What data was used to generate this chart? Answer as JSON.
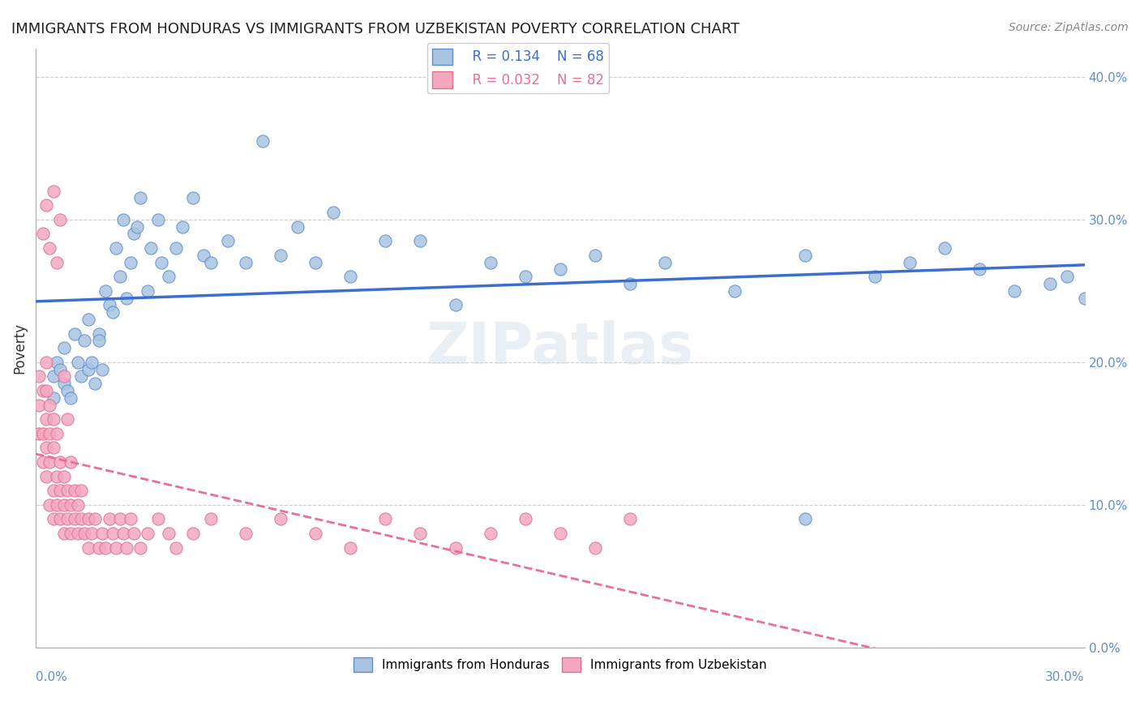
{
  "title": "IMMIGRANTS FROM HONDURAS VS IMMIGRANTS FROM UZBEKISTAN POVERTY CORRELATION CHART",
  "source": "Source: ZipAtlas.com",
  "ylabel": "Poverty",
  "ylabel_right_ticks": [
    "0.0%",
    "10.0%",
    "20.0%",
    "30.0%",
    "40.0%"
  ],
  "ylabel_right_vals": [
    0.0,
    0.1,
    0.2,
    0.3,
    0.4
  ],
  "xmin": 0.0,
  "xmax": 0.3,
  "ymin": 0.0,
  "ymax": 0.42,
  "legend_r1": "R = 0.134",
  "legend_n1": "N = 68",
  "legend_r2": "R = 0.032",
  "legend_n2": "N = 82",
  "label1": "Immigrants from Honduras",
  "label2": "Immigrants from Uzbekistan",
  "dot_color1": "#a8c4e0",
  "dot_color2": "#f4a8bf",
  "line_color1": "#3c6fcd",
  "line_color2": "#e87090",
  "watermark": "ZIPatlas",
  "background_color": "#ffffff",
  "dot_edge_color1": "#5b8fd4",
  "dot_edge_color2": "#e07090",
  "honduras_x": [
    0.005,
    0.005,
    0.006,
    0.007,
    0.008,
    0.008,
    0.009,
    0.01,
    0.011,
    0.012,
    0.013,
    0.014,
    0.015,
    0.015,
    0.016,
    0.017,
    0.018,
    0.018,
    0.019,
    0.02,
    0.021,
    0.022,
    0.023,
    0.024,
    0.025,
    0.026,
    0.027,
    0.028,
    0.029,
    0.03,
    0.032,
    0.033,
    0.035,
    0.036,
    0.038,
    0.04,
    0.042,
    0.045,
    0.048,
    0.05,
    0.055,
    0.06,
    0.065,
    0.07,
    0.075,
    0.08,
    0.085,
    0.09,
    0.1,
    0.11,
    0.12,
    0.13,
    0.14,
    0.15,
    0.16,
    0.17,
    0.18,
    0.2,
    0.22,
    0.24,
    0.25,
    0.26,
    0.27,
    0.28,
    0.29,
    0.295,
    0.3,
    0.22
  ],
  "honduras_y": [
    0.175,
    0.19,
    0.2,
    0.195,
    0.185,
    0.21,
    0.18,
    0.175,
    0.22,
    0.2,
    0.19,
    0.215,
    0.23,
    0.195,
    0.2,
    0.185,
    0.22,
    0.215,
    0.195,
    0.25,
    0.24,
    0.235,
    0.28,
    0.26,
    0.3,
    0.245,
    0.27,
    0.29,
    0.295,
    0.315,
    0.25,
    0.28,
    0.3,
    0.27,
    0.26,
    0.28,
    0.295,
    0.315,
    0.275,
    0.27,
    0.285,
    0.27,
    0.355,
    0.275,
    0.295,
    0.27,
    0.305,
    0.26,
    0.285,
    0.285,
    0.24,
    0.27,
    0.26,
    0.265,
    0.275,
    0.255,
    0.27,
    0.25,
    0.275,
    0.26,
    0.27,
    0.28,
    0.265,
    0.25,
    0.255,
    0.26,
    0.245,
    0.09
  ],
  "uzbekistan_x": [
    0.001,
    0.001,
    0.001,
    0.002,
    0.002,
    0.002,
    0.003,
    0.003,
    0.003,
    0.003,
    0.003,
    0.004,
    0.004,
    0.004,
    0.004,
    0.005,
    0.005,
    0.005,
    0.005,
    0.006,
    0.006,
    0.006,
    0.007,
    0.007,
    0.007,
    0.008,
    0.008,
    0.008,
    0.009,
    0.009,
    0.01,
    0.01,
    0.01,
    0.011,
    0.011,
    0.012,
    0.012,
    0.013,
    0.013,
    0.014,
    0.015,
    0.015,
    0.016,
    0.017,
    0.018,
    0.019,
    0.02,
    0.021,
    0.022,
    0.023,
    0.024,
    0.025,
    0.026,
    0.027,
    0.028,
    0.03,
    0.032,
    0.035,
    0.038,
    0.04,
    0.045,
    0.05,
    0.06,
    0.07,
    0.08,
    0.09,
    0.1,
    0.11,
    0.12,
    0.13,
    0.14,
    0.15,
    0.16,
    0.17,
    0.002,
    0.003,
    0.004,
    0.005,
    0.006,
    0.007,
    0.008,
    0.009
  ],
  "uzbekistan_y": [
    0.15,
    0.17,
    0.19,
    0.13,
    0.15,
    0.18,
    0.12,
    0.14,
    0.16,
    0.18,
    0.2,
    0.1,
    0.13,
    0.15,
    0.17,
    0.09,
    0.11,
    0.14,
    0.16,
    0.1,
    0.12,
    0.15,
    0.09,
    0.11,
    0.13,
    0.08,
    0.1,
    0.12,
    0.09,
    0.11,
    0.08,
    0.1,
    0.13,
    0.09,
    0.11,
    0.08,
    0.1,
    0.09,
    0.11,
    0.08,
    0.07,
    0.09,
    0.08,
    0.09,
    0.07,
    0.08,
    0.07,
    0.09,
    0.08,
    0.07,
    0.09,
    0.08,
    0.07,
    0.09,
    0.08,
    0.07,
    0.08,
    0.09,
    0.08,
    0.07,
    0.08,
    0.09,
    0.08,
    0.09,
    0.08,
    0.07,
    0.09,
    0.08,
    0.07,
    0.08,
    0.09,
    0.08,
    0.07,
    0.09,
    0.29,
    0.31,
    0.28,
    0.32,
    0.27,
    0.3,
    0.19,
    0.16
  ]
}
